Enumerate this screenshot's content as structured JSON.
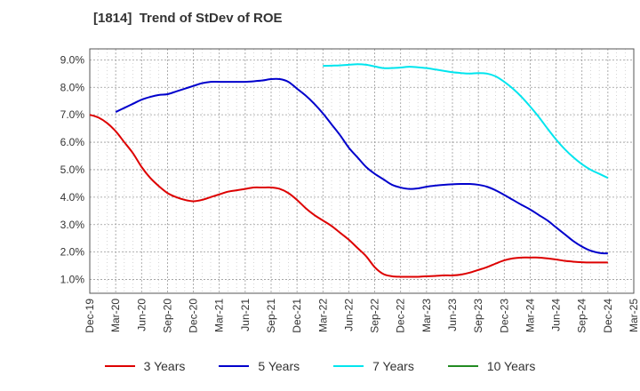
{
  "chart_data": {
    "type": "line",
    "title": "[1814]  Trend of StDev of ROE",
    "xlabel": "",
    "ylabel": "",
    "x_ticks": [
      "Dec-19",
      "Mar-20",
      "Jun-20",
      "Sep-20",
      "Dec-20",
      "Mar-21",
      "Jun-21",
      "Sep-21",
      "Dec-21",
      "Mar-22",
      "Jun-22",
      "Sep-22",
      "Dec-22",
      "Mar-23",
      "Jun-23",
      "Sep-23",
      "Dec-23",
      "Mar-24",
      "Jun-24",
      "Sep-24",
      "Dec-24",
      "Mar-25"
    ],
    "y_ticks": [
      "1.0%",
      "2.0%",
      "3.0%",
      "4.0%",
      "5.0%",
      "6.0%",
      "7.0%",
      "8.0%",
      "9.0%"
    ],
    "ylim": [
      0.5,
      9.4
    ],
    "grid": true,
    "legend_position": "bottom",
    "series": [
      {
        "name": "3 Years",
        "color": "#dd0000",
        "x": [
          "Dec-19",
          "Jan-20",
          "Feb-20",
          "Mar-20",
          "Apr-20",
          "May-20",
          "Jun-20",
          "Jul-20",
          "Aug-20",
          "Sep-20",
          "Oct-20",
          "Nov-20",
          "Dec-20",
          "Jan-21",
          "Feb-21",
          "Mar-21",
          "Apr-21",
          "May-21",
          "Jun-21",
          "Jul-21",
          "Aug-21",
          "Sep-21",
          "Oct-21",
          "Nov-21",
          "Dec-21",
          "Jan-22",
          "Feb-22",
          "Mar-22",
          "Apr-22",
          "May-22",
          "Jun-22",
          "Jul-22",
          "Aug-22",
          "Sep-22",
          "Oct-22",
          "Nov-22",
          "Dec-22",
          "Jan-23",
          "Feb-23",
          "Mar-23",
          "Apr-23",
          "May-23",
          "Jun-23",
          "Jul-23",
          "Aug-23",
          "Sep-23",
          "Oct-23",
          "Nov-23",
          "Dec-23",
          "Jan-24",
          "Feb-24",
          "Mar-24",
          "Apr-24",
          "May-24",
          "Jun-24",
          "Jul-24",
          "Aug-24",
          "Sep-24",
          "Oct-24",
          "Nov-24",
          "Dec-24"
        ],
        "values": [
          7.0,
          6.9,
          6.7,
          6.4,
          6.0,
          5.6,
          5.1,
          4.7,
          4.4,
          4.15,
          4.0,
          3.9,
          3.85,
          3.9,
          4.0,
          4.1,
          4.2,
          4.25,
          4.3,
          4.35,
          4.35,
          4.35,
          4.3,
          4.15,
          3.9,
          3.6,
          3.35,
          3.15,
          2.95,
          2.7,
          2.45,
          2.15,
          1.85,
          1.45,
          1.2,
          1.12,
          1.1,
          1.1,
          1.1,
          1.12,
          1.13,
          1.15,
          1.15,
          1.18,
          1.25,
          1.35,
          1.45,
          1.58,
          1.7,
          1.77,
          1.8,
          1.8,
          1.8,
          1.77,
          1.73,
          1.68,
          1.65,
          1.63,
          1.62,
          1.62,
          1.62
        ]
      },
      {
        "name": "5 Years",
        "color": "#0000cc",
        "x": [
          "Mar-20",
          "Apr-20",
          "May-20",
          "Jun-20",
          "Jul-20",
          "Aug-20",
          "Sep-20",
          "Oct-20",
          "Nov-20",
          "Dec-20",
          "Jan-21",
          "Feb-21",
          "Mar-21",
          "Apr-21",
          "May-21",
          "Jun-21",
          "Jul-21",
          "Aug-21",
          "Sep-21",
          "Oct-21",
          "Nov-21",
          "Dec-21",
          "Jan-22",
          "Feb-22",
          "Mar-22",
          "Apr-22",
          "May-22",
          "Jun-22",
          "Jul-22",
          "Aug-22",
          "Sep-22",
          "Oct-22",
          "Nov-22",
          "Dec-22",
          "Jan-23",
          "Feb-23",
          "Mar-23",
          "Apr-23",
          "May-23",
          "Jun-23",
          "Jul-23",
          "Aug-23",
          "Sep-23",
          "Oct-23",
          "Nov-23",
          "Dec-23",
          "Jan-24",
          "Feb-24",
          "Mar-24",
          "Apr-24",
          "May-24",
          "Jun-24",
          "Jul-24",
          "Aug-24",
          "Sep-24",
          "Oct-24",
          "Nov-24",
          "Dec-24"
        ],
        "values": [
          7.1,
          7.25,
          7.4,
          7.55,
          7.65,
          7.72,
          7.75,
          7.85,
          7.95,
          8.05,
          8.15,
          8.2,
          8.2,
          8.2,
          8.2,
          8.2,
          8.22,
          8.25,
          8.3,
          8.3,
          8.2,
          7.95,
          7.7,
          7.4,
          7.05,
          6.65,
          6.25,
          5.8,
          5.45,
          5.1,
          4.85,
          4.65,
          4.45,
          4.35,
          4.3,
          4.32,
          4.38,
          4.42,
          4.45,
          4.47,
          4.48,
          4.48,
          4.45,
          4.38,
          4.25,
          4.08,
          3.9,
          3.72,
          3.55,
          3.35,
          3.15,
          2.9,
          2.65,
          2.4,
          2.2,
          2.05,
          1.97,
          1.95
        ]
      },
      {
        "name": "7 Years",
        "color": "#00e5ee",
        "x": [
          "Mar-22",
          "Apr-22",
          "May-22",
          "Jun-22",
          "Jul-22",
          "Aug-22",
          "Sep-22",
          "Oct-22",
          "Nov-22",
          "Dec-22",
          "Jan-23",
          "Feb-23",
          "Mar-23",
          "Apr-23",
          "May-23",
          "Jun-23",
          "Jul-23",
          "Aug-23",
          "Sep-23",
          "Oct-23",
          "Nov-23",
          "Dec-23",
          "Jan-24",
          "Feb-24",
          "Mar-24",
          "Apr-24",
          "May-24",
          "Jun-24",
          "Jul-24",
          "Aug-24",
          "Sep-24",
          "Oct-24",
          "Nov-24",
          "Dec-24"
        ],
        "values": [
          8.78,
          8.79,
          8.8,
          8.82,
          8.84,
          8.82,
          8.76,
          8.7,
          8.7,
          8.72,
          8.75,
          8.73,
          8.7,
          8.65,
          8.6,
          8.55,
          8.52,
          8.5,
          8.52,
          8.5,
          8.4,
          8.2,
          7.95,
          7.65,
          7.3,
          6.92,
          6.5,
          6.1,
          5.75,
          5.45,
          5.2,
          5.0,
          4.85,
          4.7
        ]
      },
      {
        "name": "10 Years",
        "color": "#228b22",
        "x": [],
        "values": []
      }
    ]
  }
}
